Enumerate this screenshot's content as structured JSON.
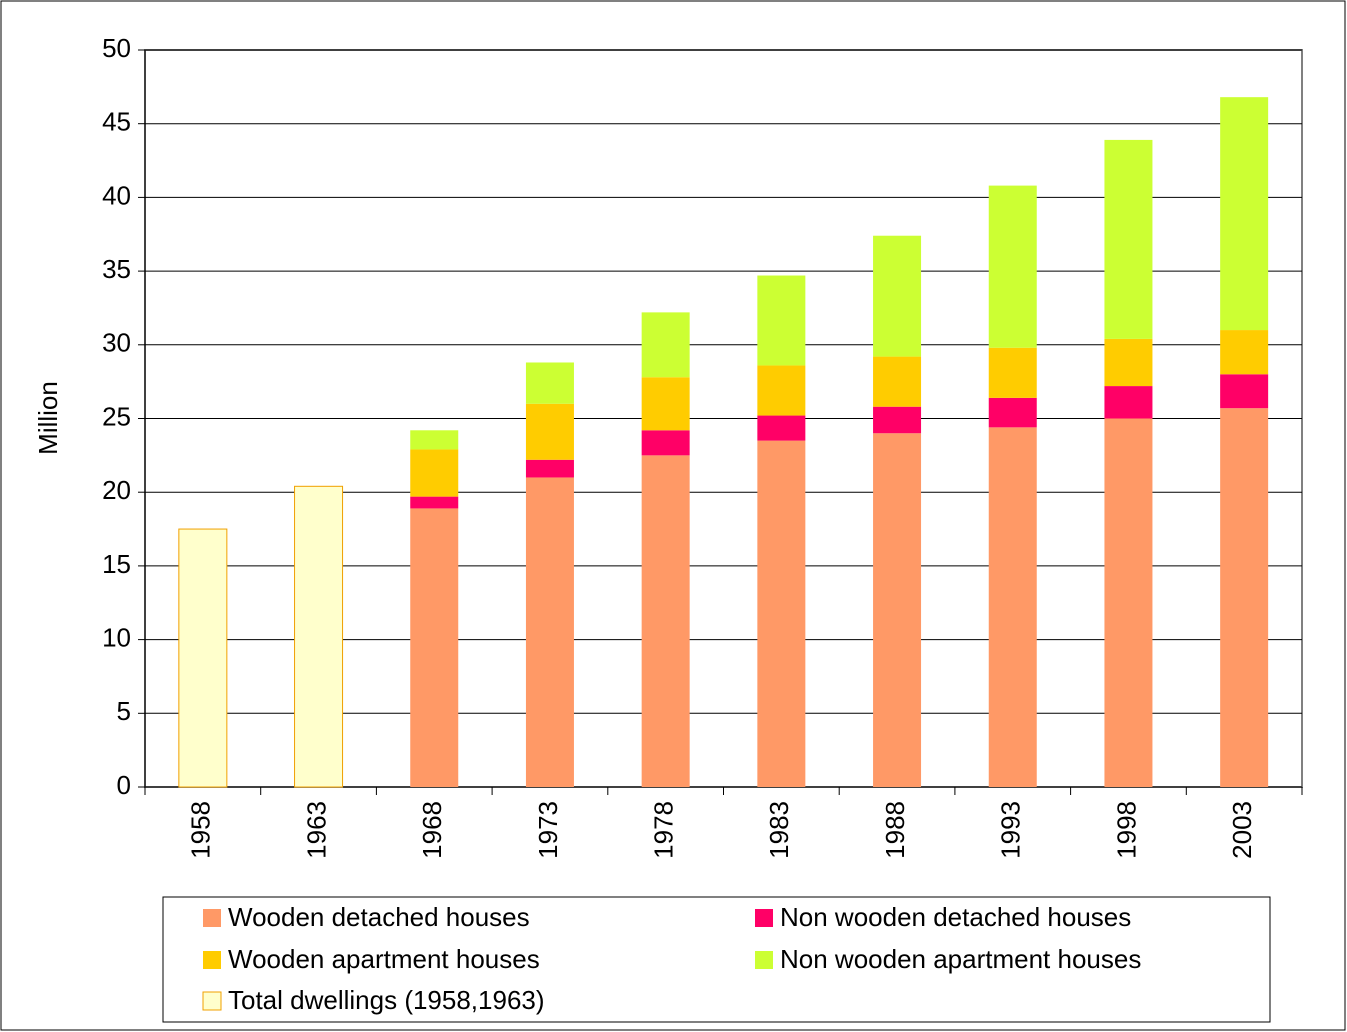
{
  "chart_data": {
    "type": "bar",
    "stacked": true,
    "y_label": "Million",
    "categories": [
      "1958",
      "1963",
      "1968",
      "1973",
      "1978",
      "1983",
      "1988",
      "1993",
      "1998",
      "2003"
    ],
    "series": [
      {
        "name": "Wooden detached houses",
        "color": "#ff9966",
        "values": [
          null,
          null,
          18.9,
          21.0,
          22.5,
          23.5,
          24.0,
          24.4,
          25.0,
          25.7
        ]
      },
      {
        "name": "Non wooden detached houses",
        "color": "#ff0066",
        "values": [
          null,
          null,
          0.8,
          1.2,
          1.7,
          1.7,
          1.8,
          2.0,
          2.2,
          2.3
        ]
      },
      {
        "name": "Wooden apartment houses",
        "color": "#ffcc00",
        "values": [
          null,
          null,
          3.2,
          3.8,
          3.6,
          3.4,
          3.4,
          3.4,
          3.2,
          3.0
        ]
      },
      {
        "name": "Non wooden apartment houses",
        "color": "#ccff33",
        "values": [
          null,
          null,
          1.3,
          2.8,
          4.4,
          6.1,
          8.2,
          11.0,
          13.5,
          15.8
        ]
      },
      {
        "name": "Total dwellings (1958,1963)",
        "color": "#ffffcc",
        "values": [
          17.5,
          20.4,
          null,
          null,
          null,
          null,
          null,
          null,
          null,
          null
        ]
      }
    ],
    "ylim": [
      0,
      50
    ],
    "yticks": [
      0,
      5,
      10,
      15,
      20,
      25,
      30,
      35,
      40,
      45,
      50
    ],
    "grid": true
  }
}
